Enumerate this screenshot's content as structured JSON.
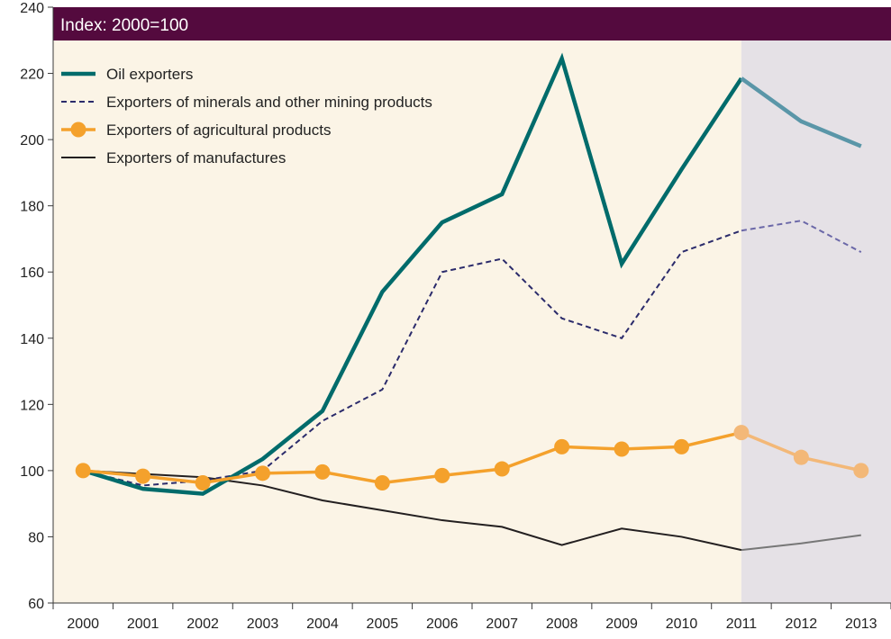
{
  "chart_data": {
    "type": "line",
    "title": "Index: 2000=100",
    "xlabel": "",
    "ylabel": "",
    "x": [
      "2000",
      "2001",
      "2002",
      "2003",
      "2004",
      "2005",
      "2006",
      "2007",
      "2008",
      "2009",
      "2010",
      "2011",
      "2012",
      "2013"
    ],
    "ylim": [
      60,
      240
    ],
    "yticks": [
      60,
      80,
      100,
      120,
      140,
      160,
      180,
      200,
      220,
      240
    ],
    "grid": false,
    "legend_position": "top-left",
    "shaded_from_year": "2011",
    "colors": {
      "plot_bg": "#fbf4e6",
      "shaded_bg": "#e5e1e6",
      "title_bar": "#540a3e",
      "title_text": "#ffffff"
    },
    "series": [
      {
        "name": "Oil exporters",
        "style": "solid-thick",
        "color": "#006b6b",
        "projection_color": "#5a96a8",
        "values": [
          100,
          94.5,
          93,
          103.5,
          118,
          154,
          175,
          183.5,
          224.5,
          162.5,
          191,
          218.5,
          205.5,
          198
        ]
      },
      {
        "name": "Exporters of minerals and other mining products",
        "style": "dashed",
        "color": "#2b2b6b",
        "projection_color": "#6b68a8",
        "values": [
          100,
          95.5,
          97,
          100,
          115,
          124.5,
          160,
          164,
          146,
          140,
          166,
          172.5,
          175.5,
          166
        ]
      },
      {
        "name": "Exporters of agricultural products",
        "style": "markers",
        "color": "#f4a12c",
        "projection_color": "#f3b878",
        "values": [
          100,
          98.3,
          96.3,
          99.2,
          99.6,
          96.3,
          98.5,
          100.5,
          107.2,
          106.5,
          107.2,
          111.5,
          104,
          100
        ]
      },
      {
        "name": "Exporters of manufactures",
        "style": "solid-thin",
        "color": "#231f20",
        "projection_color": "#777777",
        "values": [
          100,
          99,
          98,
          95.5,
          91,
          88,
          85,
          83,
          77.5,
          82.5,
          80,
          76,
          78,
          80.5
        ]
      }
    ]
  }
}
